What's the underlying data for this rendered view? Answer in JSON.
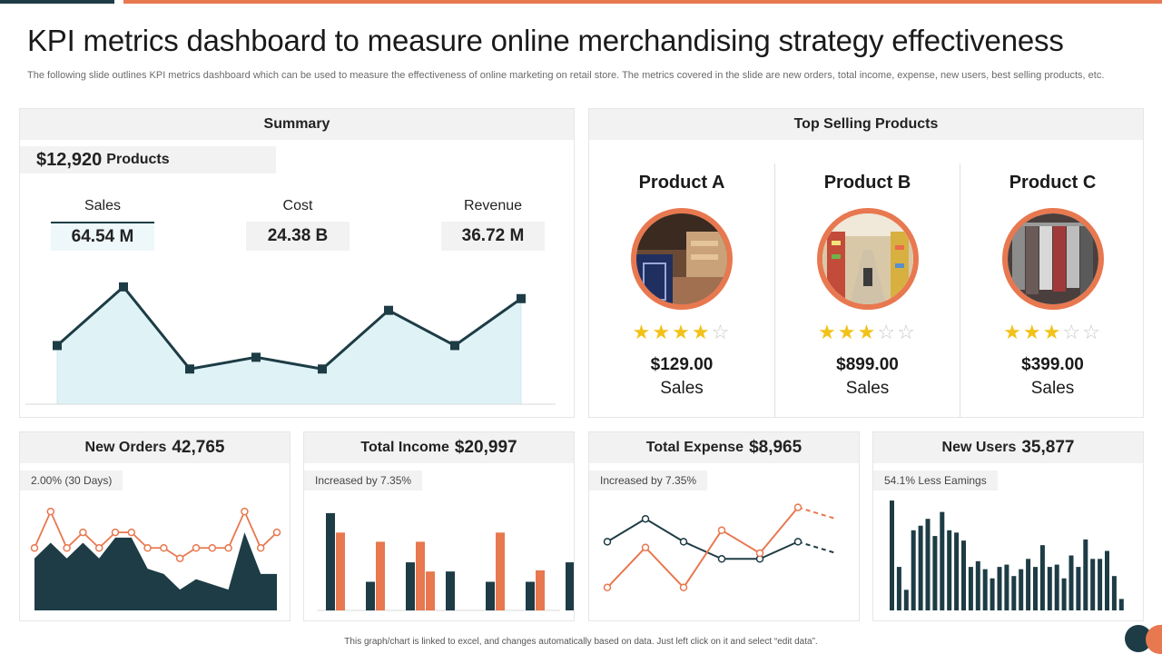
{
  "page": {
    "title": "KPI metrics dashboard to measure online merchandising strategy effectiveness",
    "subtitle": "The following slide outlines KPI metrics dashboard which can be used to measure the effectiveness of online marketing on retail store. The metrics covered in the slide are new orders, total income, expense, new users, best selling products, etc.",
    "footer": "This graph/chart is linked to excel, and changes automatically based on data. Just left click on it and select “edit data”."
  },
  "colors": {
    "dark": "#1d3c45",
    "orange": "#e8784f",
    "light_fill": "#dff3f7",
    "panel_header": "#f2f2f2"
  },
  "summary": {
    "header": "Summary",
    "products_amount": "$12,920",
    "products_label": "Products",
    "metrics": [
      {
        "label": "Sales",
        "value": "64.54 M"
      },
      {
        "label": "Cost",
        "value": "24.38 B"
      },
      {
        "label": "Revenue",
        "value": "36.72 M"
      }
    ]
  },
  "top_selling": {
    "header": "Top Selling Products",
    "products": [
      {
        "name": "Product A",
        "rating": 4,
        "price": "$129.00",
        "sales_label": "Sales",
        "image_icon": "store-aisle-photo"
      },
      {
        "name": "Product B",
        "rating": 3,
        "price": "$899.00",
        "sales_label": "Sales",
        "image_icon": "supermarket-photo"
      },
      {
        "name": "Product C",
        "rating": 3,
        "price": "$399.00",
        "sales_label": "Sales",
        "image_icon": "clothing-rack-photo"
      }
    ]
  },
  "cards": [
    {
      "title": "New Orders",
      "value": "42,765",
      "note": "2.00% (30 Days)"
    },
    {
      "title": "Total Income",
      "value": "$20,997",
      "note": "Increased by 7.35%"
    },
    {
      "title": "Total Expense",
      "value": "$8,965",
      "note": "Increased by 7.35%"
    },
    {
      "title": "New Users",
      "value": "35,877",
      "note": "54.1% Less Eamings"
    }
  ],
  "chart_data": [
    {
      "type": "area",
      "series": [
        {
          "values": [
            5,
            10,
            3,
            4,
            3,
            8,
            5,
            9
          ]
        }
      ],
      "ylim": [
        0,
        12
      ]
    },
    {
      "type": "area",
      "series": [
        {
          "values": [
            5,
            6.5,
            5,
            6.5,
            5,
            7,
            7,
            4,
            3.5,
            2,
            3,
            2.5,
            2,
            7.5,
            3.5,
            3.5
          ]
        },
        {
          "values": [
            6,
            9.5,
            6,
            7.5,
            6,
            7.5,
            7.5,
            6,
            6,
            5,
            6,
            6,
            6,
            9.5,
            6,
            7.5
          ]
        }
      ],
      "ylim": [
        0,
        11
      ]
    },
    {
      "type": "bar",
      "categories": [
        "1",
        "2",
        "3",
        "4",
        "5",
        "6",
        "7"
      ],
      "series": [
        {
          "values": [
            8.5,
            2.5,
            4.2,
            3.4,
            2.5,
            2.5,
            4.2
          ]
        },
        {
          "values": [
            6.8,
            0,
            6.0,
            0,
            6.8,
            3.5,
            0
          ]
        },
        {
          "values": [
            0,
            6.0,
            3.4,
            0,
            0,
            0,
            2.5
          ]
        }
      ],
      "ylim": [
        0,
        10
      ]
    },
    {
      "type": "line",
      "series": [
        {
          "values": [
            6,
            8,
            6,
            4.5,
            4.5,
            6,
            5
          ]
        },
        {
          "values": [
            2,
            5.5,
            2,
            7,
            5,
            9,
            8
          ]
        }
      ],
      "ylim": [
        0,
        10
      ]
    },
    {
      "type": "bar",
      "series": [
        {
          "values": [
            9.6,
            3.8,
            1.8,
            7.0,
            7.4,
            8.0,
            6.5,
            8.6,
            7.0,
            6.8,
            6.1,
            3.8,
            4.3,
            3.6,
            2.8,
            3.8,
            4.0,
            3.0,
            3.6,
            4.5,
            3.8,
            5.7,
            3.8,
            4.0,
            2.8,
            4.8,
            3.8,
            6.2,
            4.5,
            4.5,
            5.2,
            3.0,
            1.0
          ]
        }
      ],
      "ylim": [
        0,
        10
      ]
    }
  ]
}
